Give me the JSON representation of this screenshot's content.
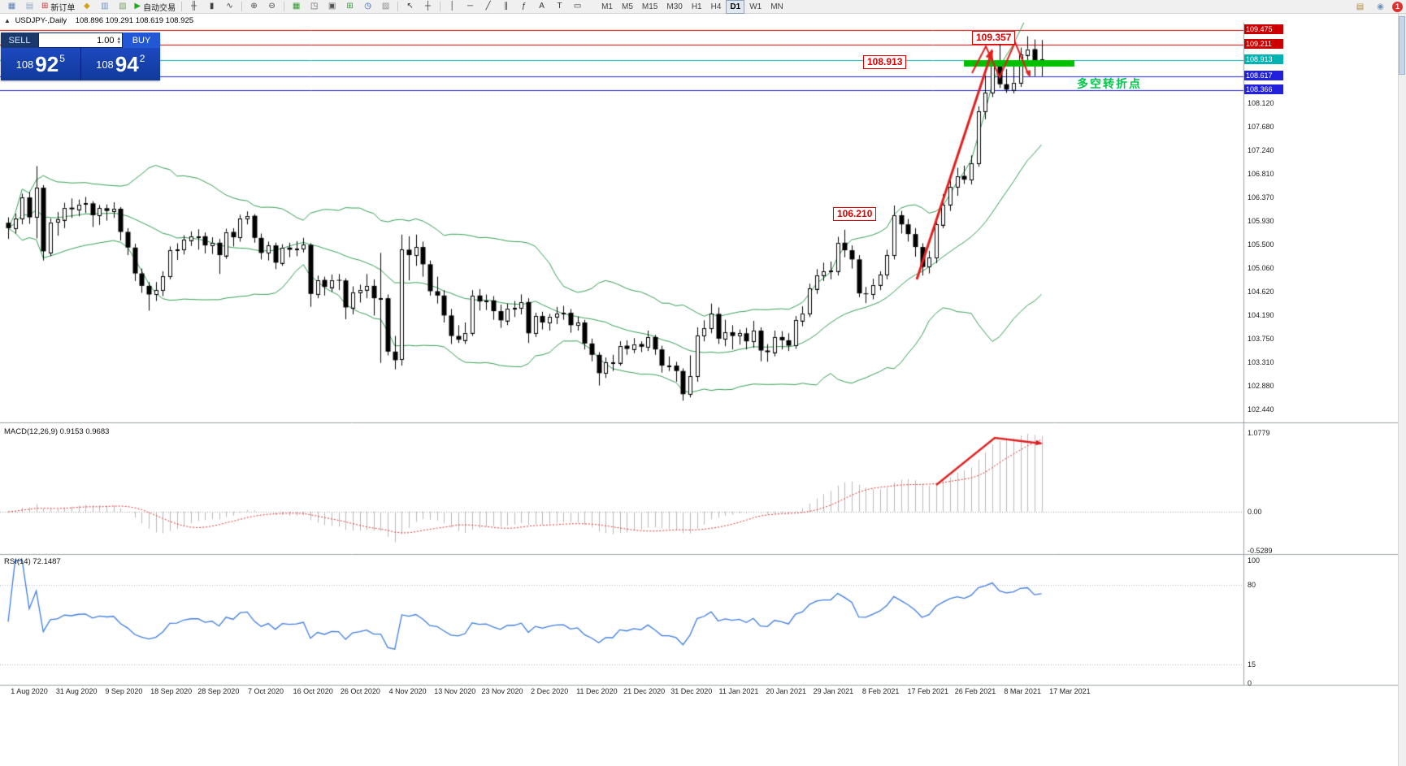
{
  "toolbar": {
    "new_order": "新订单",
    "auto_trading": "自动交易",
    "timeframes": [
      "M1",
      "M5",
      "M15",
      "M30",
      "H1",
      "H4",
      "D1",
      "W1",
      "MN"
    ],
    "active_timeframe": "D1",
    "notification_badge": "1",
    "items": [
      {
        "name": "new-chart-icon",
        "glyph": "▦",
        "color": "#5b7fb5"
      },
      {
        "name": "profiles-icon",
        "glyph": "▤",
        "color": "#8fa7c8"
      },
      {
        "name": "new-order-button",
        "glyph": "⊞",
        "color": "#cc3333",
        "label": "新订单"
      },
      {
        "name": "market-watch-icon",
        "glyph": "◆",
        "color": "#d4a017"
      },
      {
        "name": "data-window-icon",
        "glyph": "▥",
        "color": "#6f93c0"
      },
      {
        "name": "navigator-icon",
        "glyph": "▧",
        "color": "#7aa06a"
      },
      {
        "name": "auto-trading-button",
        "glyph": "▶",
        "color": "#1faa1f",
        "label": "自动交易"
      },
      {
        "sep": true
      },
      {
        "name": "bar-chart-icon",
        "glyph": "╫",
        "color": "#444444"
      },
      {
        "name": "candlestick-chart-icon",
        "glyph": "▮",
        "color": "#444444"
      },
      {
        "name": "line-chart-icon",
        "glyph": "∿",
        "color": "#444444"
      },
      {
        "sep": true
      },
      {
        "name": "zoom-in-icon",
        "glyph": "⊕",
        "color": "#444444"
      },
      {
        "name": "zoom-out-icon",
        "glyph": "⊖",
        "color": "#444444"
      },
      {
        "sep": true
      },
      {
        "name": "tile-windows-icon",
        "glyph": "▦",
        "color": "#2e9e2e"
      },
      {
        "name": "cascade-windows-icon",
        "glyph": "◳",
        "color": "#555555"
      },
      {
        "name": "arrange-windows-icon",
        "glyph": "▣",
        "color": "#555555"
      },
      {
        "name": "indicators-icon",
        "glyph": "⊞",
        "color": "#2e9e2e"
      },
      {
        "name": "periods-dropdown-icon",
        "glyph": "◷",
        "color": "#2255cc"
      },
      {
        "name": "templates-icon",
        "glyph": "▨",
        "color": "#8a8a8a"
      },
      {
        "sep": true
      },
      {
        "name": "cursor-icon",
        "glyph": "↖",
        "color": "#333333"
      },
      {
        "name": "crosshair-icon",
        "glyph": "┼",
        "color": "#333333"
      },
      {
        "sep": true
      },
      {
        "name": "vertical-line-icon",
        "glyph": "│",
        "color": "#333333"
      },
      {
        "name": "horizontal-line-icon",
        "glyph": "─",
        "color": "#333333"
      },
      {
        "name": "trendline-icon",
        "glyph": "╱",
        "color": "#333333"
      },
      {
        "name": "channel-icon",
        "glyph": "∥",
        "color": "#333333"
      },
      {
        "name": "fibonacci-icon",
        "glyph": "ƒ",
        "color": "#333333"
      },
      {
        "name": "text-icon",
        "glyph": "A",
        "color": "#333333"
      },
      {
        "name": "label-icon",
        "glyph": "T",
        "color": "#333333"
      },
      {
        "name": "shapes-icon",
        "glyph": "▭",
        "color": "#333333"
      }
    ],
    "right_icons": [
      {
        "name": "mail-icon",
        "glyph": "▤",
        "color": "#b0893a"
      },
      {
        "name": "community-icon",
        "glyph": "◉",
        "color": "#6f93c0"
      }
    ]
  },
  "chart": {
    "symbol_title": "USDJPY-,Daily",
    "ohlc": "108.896 109.291 108.619 108.925",
    "collapse_arrow": "▲"
  },
  "trade_panel": {
    "sell_label": "SELL",
    "buy_label": "BUY",
    "volume": "1.00",
    "sell_price": {
      "prefix": "108",
      "main": "92",
      "frac": "5"
    },
    "buy_price": {
      "prefix": "108",
      "main": "94",
      "frac": "2"
    }
  },
  "annotations": {
    "peak_price_label": "109.357",
    "level_price_label": "108.913",
    "breakout_price_label": "106.210",
    "turning_point_text": "多空转折点"
  },
  "macd": {
    "label": "MACD(12,26,9) 0.9153 0.9683",
    "axis": [
      "1.0779",
      "0.00",
      "-0.5289"
    ]
  },
  "rsi": {
    "label": "RSI(14) 72.1487",
    "axis": [
      "100",
      "80",
      "15",
      "0"
    ]
  },
  "chart_data": {
    "type": "candlestick",
    "symbol": "USDJPY-",
    "period": "Daily",
    "current_ohlc": {
      "open": 108.896,
      "high": 109.291,
      "low": 108.619,
      "close": 108.925
    },
    "bid": "108.925",
    "ask": "108.942",
    "indicators": {
      "bollinger": "(20,2)",
      "macd": "(12,26,9)",
      "macd_values": [
        0.9153,
        0.9683
      ],
      "rsi": "(14)",
      "rsi_value": 72.1487
    },
    "levels": [
      {
        "price": 109.475,
        "color": "#cc0000"
      },
      {
        "price": 109.211,
        "color": "#cc0000"
      },
      {
        "price": 108.913,
        "color": "#00b3b3"
      },
      {
        "price": 108.617,
        "color": "#2020dd"
      },
      {
        "price": 108.366,
        "color": "#2020dd"
      }
    ],
    "tagged_prices": [
      {
        "text": "109.475",
        "price": 109.475,
        "bg": "#cc0000",
        "fg": "#ffffff"
      },
      {
        "text": "109.211",
        "price": 109.211,
        "bg": "#cc0000",
        "fg": "#ffffff"
      },
      {
        "text": "108.913",
        "price": 108.913,
        "bg": "#00b3b3",
        "fg": "#ffffff"
      },
      {
        "text": "108.617",
        "price": 108.617,
        "bg": "#2020dd",
        "fg": "#ffffff"
      },
      {
        "text": "108.366",
        "price": 108.366,
        "bg": "#2020dd",
        "fg": "#ffffff"
      }
    ],
    "price_axis_ticks": [
      "108.120",
      "107.680",
      "107.240",
      "106.810",
      "106.370",
      "105.930",
      "105.500",
      "105.060",
      "104.620",
      "104.190",
      "103.750",
      "103.310",
      "102.880",
      "102.440"
    ],
    "support_band": {
      "price": 108.9,
      "color": "#00c000"
    },
    "dates": [
      "1 Aug 2020",
      "31 Aug 2020",
      "9 Sep 2020",
      "18 Sep 2020",
      "28 Sep 2020",
      "7 Oct 2020",
      "16 Oct 2020",
      "26 Oct 2020",
      "4 Nov 2020",
      "13 Nov 2020",
      "23 Nov 2020",
      "2 Dec 2020",
      "11 Dec 2020",
      "21 Dec 2020",
      "31 Dec 2020",
      "11 Jan 2021",
      "20 Jan 2021",
      "29 Jan 2021",
      "8 Feb 2021",
      "17 Feb 2021",
      "26 Feb 2021",
      "8 Mar 2021",
      "17 Mar 2021"
    ],
    "candles": [
      [
        105.9,
        106.0,
        105.6,
        105.8
      ],
      [
        105.8,
        106.07,
        105.7,
        105.98
      ],
      [
        105.98,
        106.44,
        105.87,
        106.37
      ],
      [
        106.37,
        106.47,
        105.88,
        106.0
      ],
      [
        106.01,
        106.95,
        105.61,
        106.55
      ],
      [
        106.55,
        106.6,
        105.2,
        105.37
      ],
      [
        105.35,
        105.98,
        105.28,
        105.91
      ],
      [
        105.91,
        106.1,
        105.66,
        105.96
      ],
      [
        105.96,
        106.27,
        105.8,
        106.18
      ],
      [
        106.18,
        106.35,
        105.99,
        106.15
      ],
      [
        106.15,
        106.33,
        106.02,
        106.24
      ],
      [
        106.24,
        106.38,
        106.08,
        106.26
      ],
      [
        106.26,
        106.3,
        105.82,
        106.04
      ],
      [
        106.04,
        106.23,
        105.86,
        106.17
      ],
      [
        106.17,
        106.24,
        105.94,
        106.12
      ],
      [
        106.12,
        106.28,
        105.99,
        106.16
      ],
      [
        106.16,
        106.19,
        105.57,
        105.73
      ],
      [
        105.73,
        105.8,
        105.3,
        105.44
      ],
      [
        105.44,
        105.51,
        104.82,
        104.96
      ],
      [
        104.96,
        105.05,
        104.6,
        104.73
      ],
      [
        104.73,
        104.8,
        104.27,
        104.57
      ],
      [
        104.57,
        104.8,
        104.45,
        104.65
      ],
      [
        104.65,
        105.0,
        104.54,
        104.91
      ],
      [
        104.91,
        105.46,
        104.85,
        105.39
      ],
      [
        105.39,
        105.52,
        105.21,
        105.4
      ],
      [
        105.4,
        105.67,
        105.31,
        105.58
      ],
      [
        105.58,
        105.74,
        105.47,
        105.65
      ],
      [
        105.65,
        105.78,
        105.4,
        105.65
      ],
      [
        105.65,
        105.72,
        105.33,
        105.48
      ],
      [
        105.48,
        105.63,
        105.32,
        105.53
      ],
      [
        105.53,
        105.6,
        104.95,
        105.3
      ],
      [
        105.3,
        105.79,
        105.23,
        105.73
      ],
      [
        105.73,
        105.8,
        105.46,
        105.63
      ],
      [
        105.63,
        106.05,
        105.55,
        105.98
      ],
      [
        105.98,
        106.11,
        105.87,
        106.03
      ],
      [
        106.03,
        106.06,
        105.53,
        105.62
      ],
      [
        105.62,
        105.7,
        105.22,
        105.34
      ],
      [
        105.34,
        105.55,
        105.2,
        105.48
      ],
      [
        105.48,
        105.53,
        105.04,
        105.16
      ],
      [
        105.16,
        105.5,
        105.1,
        105.44
      ],
      [
        105.44,
        105.53,
        105.26,
        105.4
      ],
      [
        105.4,
        105.56,
        105.28,
        105.42
      ],
      [
        105.42,
        105.62,
        105.35,
        105.49
      ],
      [
        105.49,
        105.52,
        104.34,
        104.58
      ],
      [
        104.58,
        104.92,
        104.5,
        104.84
      ],
      [
        104.84,
        104.9,
        104.55,
        104.71
      ],
      [
        104.71,
        104.94,
        104.62,
        104.84
      ],
      [
        104.84,
        104.95,
        104.65,
        104.83
      ],
      [
        104.83,
        104.87,
        104.11,
        104.33
      ],
      [
        104.33,
        104.72,
        104.2,
        104.61
      ],
      [
        104.61,
        104.75,
        104.42,
        104.66
      ],
      [
        104.66,
        104.95,
        104.5,
        104.73
      ],
      [
        104.73,
        104.85,
        104.18,
        104.5
      ],
      [
        104.5,
        105.34,
        103.3,
        104.5
      ],
      [
        104.5,
        104.57,
        103.44,
        103.51
      ],
      [
        103.51,
        103.8,
        103.18,
        103.35
      ],
      [
        103.36,
        105.68,
        103.25,
        105.4
      ],
      [
        105.4,
        105.65,
        104.83,
        105.3
      ],
      [
        105.3,
        105.68,
        105.1,
        105.45
      ],
      [
        105.45,
        105.55,
        104.9,
        105.13
      ],
      [
        105.13,
        105.2,
        104.55,
        104.63
      ],
      [
        104.63,
        104.9,
        104.4,
        104.55
      ],
      [
        104.55,
        104.65,
        104.05,
        104.18
      ],
      [
        104.18,
        104.3,
        103.65,
        103.8
      ],
      [
        103.8,
        104.0,
        103.67,
        103.73
      ],
      [
        103.73,
        104.05,
        103.65,
        103.86
      ],
      [
        103.86,
        104.65,
        103.8,
        104.55
      ],
      [
        104.55,
        104.67,
        104.27,
        104.44
      ],
      [
        104.44,
        104.57,
        104.28,
        104.46
      ],
      [
        104.46,
        104.54,
        104.1,
        104.26
      ],
      [
        104.26,
        104.38,
        103.95,
        104.09
      ],
      [
        104.09,
        104.4,
        104.0,
        104.31
      ],
      [
        104.31,
        104.45,
        104.15,
        104.32
      ],
      [
        104.32,
        104.57,
        104.2,
        104.43
      ],
      [
        104.43,
        104.5,
        103.67,
        103.85
      ],
      [
        103.85,
        104.23,
        103.78,
        104.17
      ],
      [
        104.17,
        104.25,
        103.92,
        104.05
      ],
      [
        104.05,
        104.21,
        103.9,
        104.16
      ],
      [
        104.16,
        104.34,
        104.02,
        104.22
      ],
      [
        104.22,
        104.36,
        104.1,
        104.23
      ],
      [
        104.23,
        104.3,
        103.86,
        104.0
      ],
      [
        104.0,
        104.16,
        103.9,
        104.05
      ],
      [
        104.05,
        104.1,
        103.55,
        103.66
      ],
      [
        103.66,
        103.75,
        103.33,
        103.45
      ],
      [
        103.45,
        103.5,
        102.88,
        103.11
      ],
      [
        103.11,
        103.4,
        103.02,
        103.31
      ],
      [
        103.31,
        103.45,
        103.15,
        103.31
      ],
      [
        103.31,
        103.7,
        103.25,
        103.62
      ],
      [
        103.62,
        103.72,
        103.45,
        103.56
      ],
      [
        103.56,
        103.76,
        103.48,
        103.65
      ],
      [
        103.65,
        103.7,
        103.5,
        103.6
      ],
      [
        103.6,
        103.9,
        103.52,
        103.78
      ],
      [
        103.78,
        103.82,
        103.45,
        103.55
      ],
      [
        103.55,
        103.62,
        103.12,
        103.25
      ],
      [
        103.25,
        103.42,
        103.15,
        103.25
      ],
      [
        103.25,
        103.32,
        102.95,
        103.15
      ],
      [
        103.15,
        103.2,
        102.6,
        102.72
      ],
      [
        102.72,
        103.44,
        102.66,
        103.05
      ],
      [
        103.05,
        103.96,
        102.95,
        103.81
      ],
      [
        103.81,
        104.09,
        103.7,
        103.94
      ],
      [
        103.94,
        104.4,
        103.85,
        104.21
      ],
      [
        104.21,
        104.33,
        103.65,
        103.75
      ],
      [
        103.75,
        104.1,
        103.61,
        103.87
      ],
      [
        103.87,
        104.0,
        103.55,
        103.8
      ],
      [
        103.8,
        103.92,
        103.64,
        103.85
      ],
      [
        103.85,
        103.95,
        103.55,
        103.7
      ],
      [
        103.7,
        104.08,
        103.58,
        103.9
      ],
      [
        103.9,
        103.96,
        103.33,
        103.53
      ],
      [
        103.53,
        103.65,
        103.32,
        103.5
      ],
      [
        103.5,
        103.9,
        103.42,
        103.78
      ],
      [
        103.78,
        103.89,
        103.55,
        103.72
      ],
      [
        103.72,
        103.85,
        103.52,
        103.62
      ],
      [
        103.62,
        104.17,
        103.56,
        104.09
      ],
      [
        104.09,
        104.35,
        103.98,
        104.22
      ],
      [
        104.22,
        104.77,
        104.15,
        104.68
      ],
      [
        104.68,
        105.04,
        104.58,
        104.93
      ],
      [
        104.93,
        105.16,
        104.82,
        105.0
      ],
      [
        105.0,
        105.18,
        104.85,
        105.01
      ],
      [
        105.01,
        105.64,
        104.92,
        105.53
      ],
      [
        105.53,
        105.77,
        105.26,
        105.39
      ],
      [
        105.39,
        105.48,
        105.05,
        105.22
      ],
      [
        105.22,
        105.3,
        104.52,
        104.59
      ],
      [
        104.59,
        104.71,
        104.41,
        104.58
      ],
      [
        104.58,
        104.86,
        104.48,
        104.75
      ],
      [
        104.75,
        105.0,
        104.65,
        104.94
      ],
      [
        104.94,
        105.4,
        104.85,
        105.3
      ],
      [
        105.3,
        106.22,
        105.22,
        106.04
      ],
      [
        106.04,
        106.12,
        105.7,
        105.87
      ],
      [
        105.87,
        105.97,
        105.55,
        105.69
      ],
      [
        105.69,
        105.8,
        105.27,
        105.45
      ],
      [
        105.45,
        105.52,
        104.92,
        105.08
      ],
      [
        105.08,
        105.38,
        104.96,
        105.25
      ],
      [
        105.25,
        106.0,
        105.15,
        105.87
      ],
      [
        105.87,
        106.43,
        105.8,
        106.24
      ],
      [
        106.24,
        106.7,
        106.12,
        106.57
      ],
      [
        106.57,
        106.92,
        106.4,
        106.77
      ],
      [
        106.77,
        106.96,
        106.62,
        106.7
      ],
      [
        106.7,
        107.15,
        106.61,
        107.0
      ],
      [
        107.0,
        108.06,
        106.94,
        107.97
      ],
      [
        107.97,
        108.63,
        107.82,
        108.31
      ],
      [
        108.31,
        108.95,
        108.23,
        108.85
      ],
      [
        108.85,
        109.23,
        108.4,
        108.47
      ],
      [
        108.47,
        108.75,
        108.31,
        108.37
      ],
      [
        108.37,
        108.8,
        108.3,
        108.5
      ],
      [
        108.5,
        109.15,
        108.42,
        109.02
      ],
      [
        109.02,
        109.36,
        108.86,
        109.12
      ],
      [
        109.12,
        109.3,
        108.62,
        108.8
      ],
      [
        108.896,
        109.291,
        108.619,
        108.925
      ]
    ]
  }
}
